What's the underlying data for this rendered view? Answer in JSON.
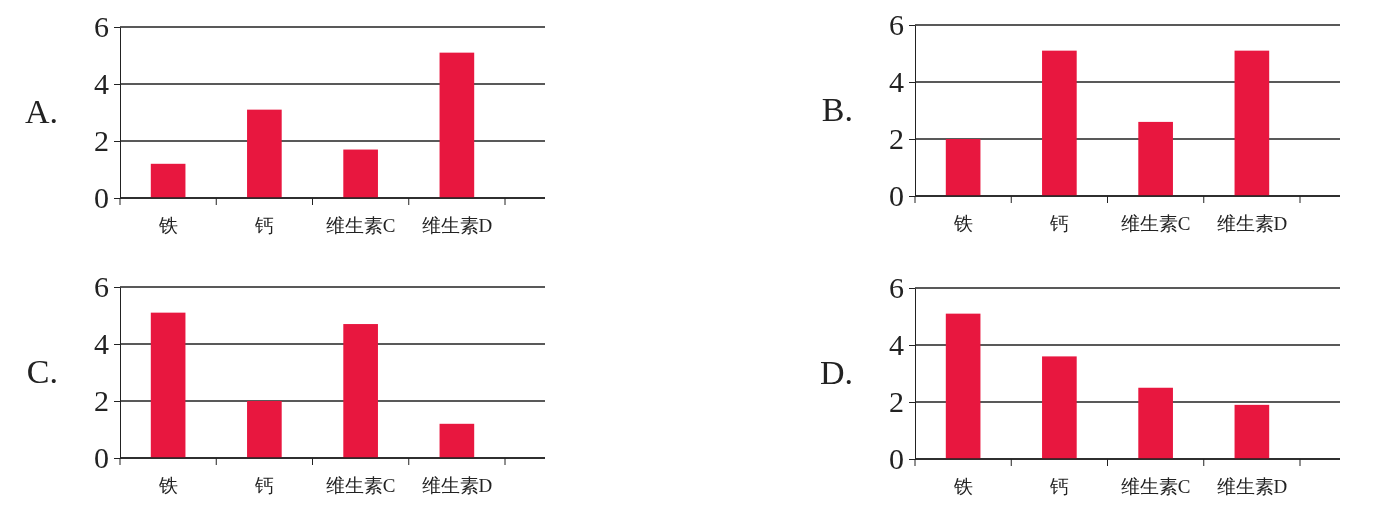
{
  "chart_data": [
    {
      "type": "bar",
      "title": "A.",
      "categories": [
        "铁",
        "钙",
        "维生素C",
        "维生素D"
      ],
      "values": [
        1.2,
        3.1,
        1.7,
        5.1
      ],
      "color": "#e8173f",
      "ylim": [
        0,
        6
      ],
      "yticks": [
        0,
        2,
        4,
        6
      ],
      "grid": "y"
    },
    {
      "type": "bar",
      "title": "B.",
      "categories": [
        "铁",
        "钙",
        "维生素C",
        "维生素D"
      ],
      "values": [
        2.0,
        5.1,
        2.6,
        5.1
      ],
      "color": "#e8173f",
      "ylim": [
        0,
        6
      ],
      "yticks": [
        0,
        2,
        4,
        6
      ],
      "grid": "y"
    },
    {
      "type": "bar",
      "title": "C.",
      "categories": [
        "铁",
        "钙",
        "维生素C",
        "维生素D"
      ],
      "values": [
        5.1,
        2.0,
        4.7,
        1.2
      ],
      "color": "#e8173f",
      "ylim": [
        0,
        6
      ],
      "yticks": [
        0,
        2,
        4,
        6
      ],
      "grid": "y"
    },
    {
      "type": "bar",
      "title": "D.",
      "categories": [
        "铁",
        "钙",
        "维生素C",
        "维生素D"
      ],
      "values": [
        5.1,
        3.6,
        2.5,
        1.9
      ],
      "color": "#e8173f",
      "ylim": [
        0,
        6
      ],
      "yticks": [
        0,
        2,
        4,
        6
      ],
      "grid": "y"
    }
  ]
}
